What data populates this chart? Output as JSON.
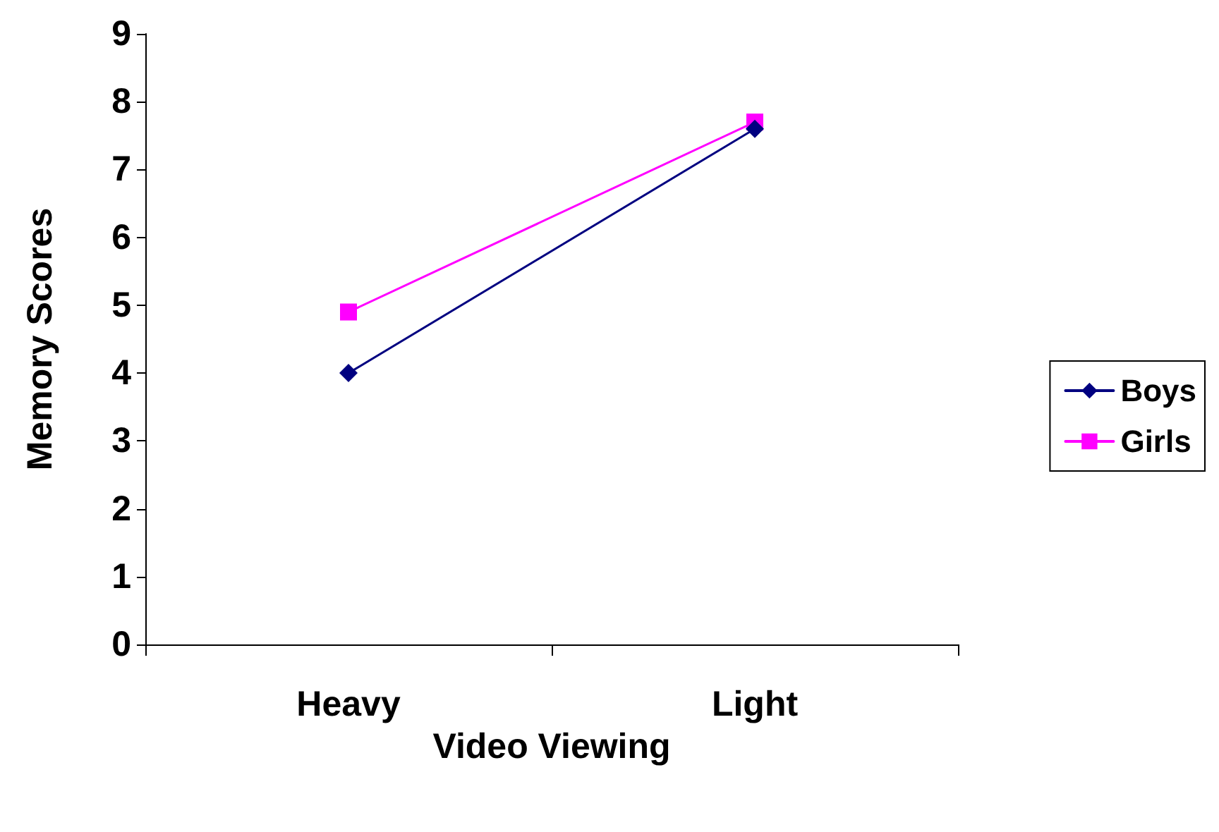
{
  "chart_data": {
    "type": "line",
    "xlabel": "Video Viewing",
    "ylabel": "Memory Scores",
    "categories": [
      "Heavy",
      "Light"
    ],
    "series": [
      {
        "name": "Boys",
        "color": "#000080",
        "values": [
          4.0,
          7.6
        ],
        "marker": "diamond"
      },
      {
        "name": "Girls",
        "color": "#ff00ff",
        "values": [
          4.9,
          7.7
        ],
        "marker": "square"
      }
    ],
    "ylim": [
      0,
      9
    ],
    "yticks": [
      0,
      1,
      2,
      3,
      4,
      5,
      6,
      7,
      8,
      9
    ],
    "grid": false,
    "legend": "right",
    "line_style": "solid"
  }
}
